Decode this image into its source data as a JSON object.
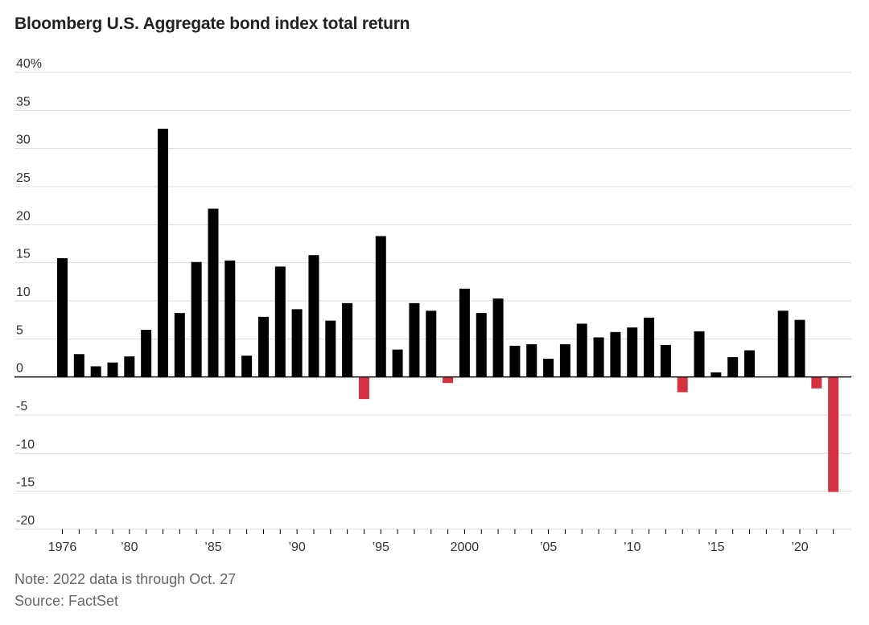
{
  "chart_data": {
    "type": "bar",
    "title": "Bloomberg U.S. Aggregate bond index total return",
    "xlabel": "",
    "ylabel": "",
    "ylim": [
      -20,
      40
    ],
    "yticks": [
      40,
      35,
      30,
      25,
      20,
      15,
      10,
      5,
      0,
      -5,
      -10,
      -15,
      -20
    ],
    "ytick_labels": [
      "40%",
      "35",
      "30",
      "25",
      "20",
      "15",
      "10",
      "5",
      "0",
      "-5",
      "-10",
      "-15",
      "-20"
    ],
    "x": [
      1976,
      1977,
      1978,
      1979,
      1980,
      1981,
      1982,
      1983,
      1984,
      1985,
      1986,
      1987,
      1988,
      1989,
      1990,
      1991,
      1992,
      1993,
      1994,
      1995,
      1996,
      1997,
      1998,
      1999,
      2000,
      2001,
      2002,
      2003,
      2004,
      2005,
      2006,
      2007,
      2008,
      2009,
      2010,
      2011,
      2012,
      2013,
      2014,
      2015,
      2016,
      2017,
      2018,
      2019,
      2020,
      2021,
      2022
    ],
    "values": [
      15.6,
      3.0,
      1.4,
      1.9,
      2.7,
      6.2,
      32.6,
      8.4,
      15.1,
      22.1,
      15.3,
      2.8,
      7.9,
      14.5,
      8.9,
      16.0,
      7.4,
      9.7,
      -2.9,
      18.5,
      3.6,
      9.7,
      8.7,
      -0.8,
      11.6,
      8.4,
      10.3,
      4.1,
      4.3,
      2.4,
      4.3,
      7.0,
      5.2,
      5.9,
      6.5,
      7.8,
      4.2,
      -2.0,
      6.0,
      0.6,
      2.6,
      3.5,
      0.0,
      8.7,
      7.5,
      -1.5,
      -15.1
    ],
    "xtick_years": [
      1976,
      1980,
      1985,
      1990,
      1995,
      2000,
      2005,
      2010,
      2015,
      2020
    ],
    "xtick_labels": [
      "1976",
      "’80",
      "’85",
      "’90",
      "’95",
      "2000",
      "’05",
      "’10",
      "’15",
      "’20"
    ],
    "colors": {
      "positive": "#000000",
      "negative": "#d5333f",
      "grid": "#dcdcdc",
      "axis": "#000000"
    },
    "notes": [
      "Note: 2022 data is through Oct. 27",
      "Source: FactSet"
    ]
  }
}
